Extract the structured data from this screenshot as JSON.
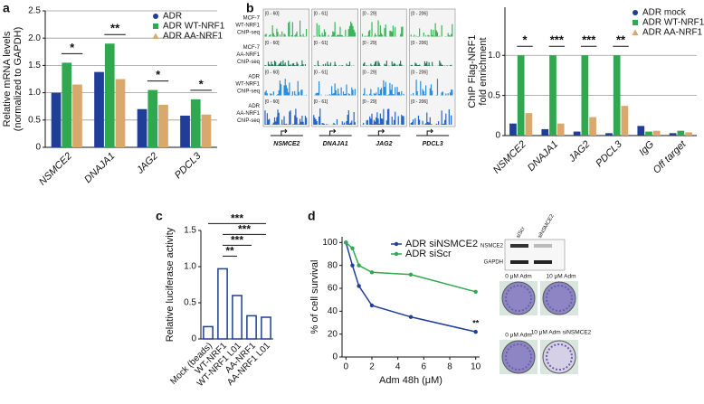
{
  "chart_data": [
    {
      "type": "bar",
      "panel": "a",
      "ylabel": [
        "Relative mRNA levels",
        "(normalized to GAPDH)"
      ],
      "categories": [
        "NSMCE2",
        "DNAJA1",
        "JAG2",
        "PDCL3"
      ],
      "series": [
        {
          "name": "ADR",
          "color": "#1f3d99",
          "values": [
            1.0,
            1.38,
            0.7,
            0.58
          ]
        },
        {
          "name": "ADR WT-NRF1",
          "color": "#2fa84f",
          "values": [
            1.55,
            1.9,
            1.05,
            0.88
          ]
        },
        {
          "name": "ADR AA-NRF1",
          "color": "#d9a86c",
          "values": [
            1.15,
            1.25,
            0.78,
            0.6
          ]
        }
      ],
      "ylim": [
        0,
        2.5
      ],
      "yticks": [
        0,
        0.5,
        {
          "value": 1,
          "label": "1.0"
        },
        1.5,
        {
          "value": 2,
          "label": "2.0"
        },
        2.5
      ],
      "grid": true,
      "legend": "upper right",
      "annotations": [
        "*",
        "**",
        "*",
        "*"
      ]
    },
    {
      "type": "tracks",
      "panel": "b",
      "tracks": [
        {
          "name": [
            "MCF-7",
            "WT-NRF1",
            "ChIP-seq"
          ],
          "color": "#3cb55a",
          "ranges": [
            "[0 - 60]",
            "[0 - 61]",
            "[0 - 29]",
            "[0 - 206]"
          ]
        },
        {
          "name": [
            "MCF-7",
            "AA-NRF1",
            "ChIP-seq"
          ],
          "color": "#2a7a60",
          "ranges": [
            "[0 - 60]",
            "[0 - 61]",
            "[0 - 29]",
            "[0 - 206]"
          ]
        },
        {
          "name": [
            "ADR",
            "WT-NRF1",
            "ChIP-seq"
          ],
          "color": "#2a8ee0",
          "ranges": [
            "[0 - 60]",
            "[0 - 61]",
            "[0 - 29]",
            "[0 - 206]"
          ]
        },
        {
          "name": [
            "ADR",
            "AA-NRF1",
            "ChIP-seq"
          ],
          "color": "#2566c8",
          "ranges": [
            "[0 - 60]",
            "[0 - 61]",
            "[0 - 29]",
            "[0 - 206]"
          ]
        }
      ],
      "genes": [
        "NSMCE2",
        "DNAJA1",
        "JAG2",
        "PDCL3"
      ]
    },
    {
      "type": "bar",
      "panel": "",
      "ylabel": [
        "ChIP Flag-NRF1",
        "fold enrichment"
      ],
      "categories": [
        "NSMCE2",
        "DNAJA1",
        "JAG2",
        "PDCL3",
        "IgG",
        "Off target"
      ],
      "series": [
        {
          "name": "ADR mock",
          "color": "#1f3d99",
          "values": [
            0.15,
            0.08,
            0.05,
            0.03,
            0.12,
            0.03
          ]
        },
        {
          "name": "ADR WT-NRF1",
          "color": "#2fa84f",
          "values": [
            1.0,
            1.0,
            1.0,
            1.0,
            0.05,
            0.06
          ]
        },
        {
          "name": "ADR AA-NRF1",
          "color": "#d9a86c",
          "values": [
            0.28,
            0.15,
            0.23,
            0.37,
            0.06,
            0.04
          ]
        }
      ],
      "ylim": [
        0,
        1.6
      ],
      "yticks": [
        0,
        0.5,
        {
          "value": 1,
          "label": "1.0"
        }
      ],
      "grid": true,
      "legend": "upper right",
      "annotations": [
        "*",
        "***",
        "***",
        "**"
      ]
    },
    {
      "type": "bar",
      "panel": "c",
      "ylabel": [
        "Relative luciferase activity"
      ],
      "categories": [
        "Mock (beads)",
        "WT-NRF1",
        "WT-NRF1 L01",
        "AA-NRF1",
        "AA-NRF1 L01"
      ],
      "values": [
        0.17,
        0.97,
        0.6,
        0.32,
        0.3
      ],
      "color": "#1f3d99",
      "ylim": [
        0,
        1.5
      ],
      "yticks": [
        0,
        0.5,
        {
          "value": 1,
          "label": "1.0"
        },
        1.5
      ],
      "annotations": [
        "**",
        "***",
        "***",
        "***"
      ]
    },
    {
      "type": "line",
      "panel": "d",
      "xlabel": "Adm 48h (μM)",
      "ylabel": "% of cell survival",
      "x": [
        0,
        0.5,
        1,
        2,
        5,
        10
      ],
      "series": [
        {
          "name": "ADR siNSMCE2",
          "color": "#1f3d99",
          "values": [
            100,
            80,
            62,
            45,
            35,
            22
          ]
        },
        {
          "name": "ADR siScr",
          "color": "#2fa84f",
          "values": [
            100,
            95,
            80,
            74,
            72,
            57
          ]
        }
      ],
      "xlim": [
        -0.3,
        10.3
      ],
      "xticks": [
        0,
        2,
        4,
        6,
        8,
        10
      ],
      "ylim": [
        0,
        105
      ],
      "yticks": [
        0,
        20,
        40,
        60,
        80,
        100
      ],
      "annotations": [
        "**"
      ]
    }
  ],
  "images": {
    "blot_lanes": [
      "siScr",
      "siNSMCE2"
    ],
    "blot_rows": [
      "NSMCE2",
      "GAPDH"
    ],
    "colony_labels": [
      "0 μM Adm",
      "10 μM Adm",
      "0 μM Adm",
      "10 μM Adm siNSMCE2"
    ]
  }
}
